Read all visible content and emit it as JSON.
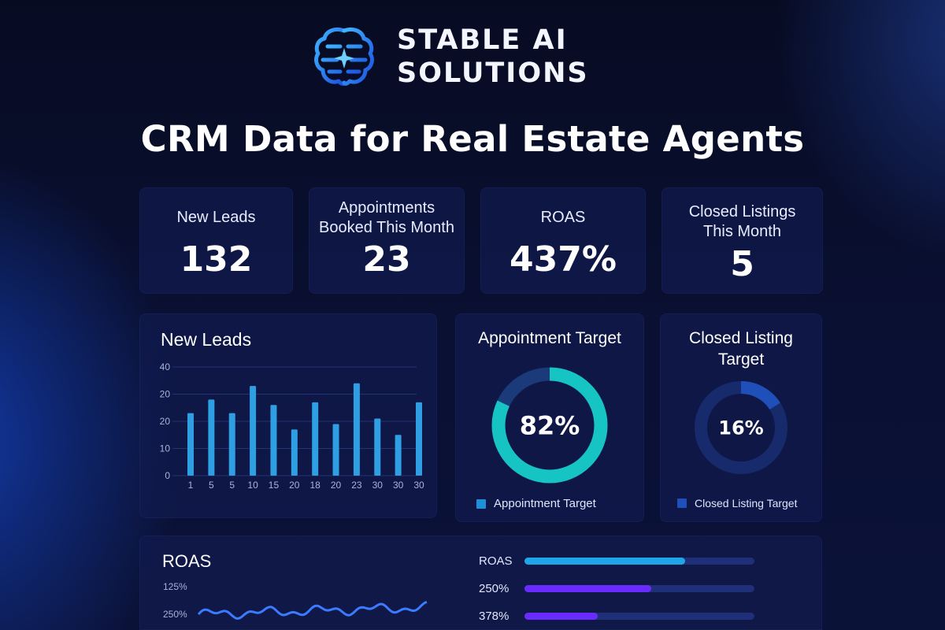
{
  "brand": {
    "name_line1": "STABLE AI",
    "name_line2": "SOLUTIONS",
    "logo_icon": "brain-circuit-icon"
  },
  "page_title": "CRM Data for Real Estate Agents",
  "kpis": [
    {
      "label_line1": "New Leads",
      "label_line2": "",
      "value": "132"
    },
    {
      "label_line1": "Appointments",
      "label_line2": "Booked This Month",
      "value": "23"
    },
    {
      "label_line1": "ROAS",
      "label_line2": "",
      "value": "437%"
    },
    {
      "label_line1": "Closed Listings",
      "label_line2": "This Month",
      "value": "5"
    }
  ],
  "new_leads_chart": {
    "title": "New Leads",
    "chart_data": {
      "type": "bar",
      "categories": [
        "1",
        "5",
        "5",
        "10",
        "15",
        "20",
        "18",
        "20",
        "23",
        "30",
        "30",
        "30"
      ],
      "values": [
        23,
        28,
        23,
        33,
        26,
        17,
        27,
        19,
        34,
        21,
        15,
        27
      ],
      "y_tick_labels": [
        "40",
        "20",
        "20",
        "10",
        "0"
      ],
      "ylim": [
        0,
        40
      ],
      "grid": true,
      "color": "#2f9fe3"
    }
  },
  "appointment_target": {
    "title": "Appointment Target",
    "percent_label": "82%",
    "value": 0.82,
    "legend": "Appointment Target",
    "color": "#16c4c4",
    "track_color": "#1b3a7a"
  },
  "closed_listing_target": {
    "title_line1": "Closed Listing",
    "title_line2": "Target",
    "percent_label": "16%",
    "value": 0.16,
    "legend": "Closed Listing Target",
    "color": "#1f4fb8",
    "track_color": "#172a6b"
  },
  "roas_section": {
    "title": "ROAS",
    "line_y_labels": [
      "125%",
      "250%"
    ],
    "line_color": "#3a7bff",
    "bars": [
      {
        "label": "ROAS",
        "value": 0.7,
        "color": "#1fa6e8"
      },
      {
        "label": "250%",
        "value": 0.55,
        "color": "#6a2bff"
      },
      {
        "label": "378%",
        "value": 0.32,
        "color": "#6a2bff"
      }
    ]
  }
}
